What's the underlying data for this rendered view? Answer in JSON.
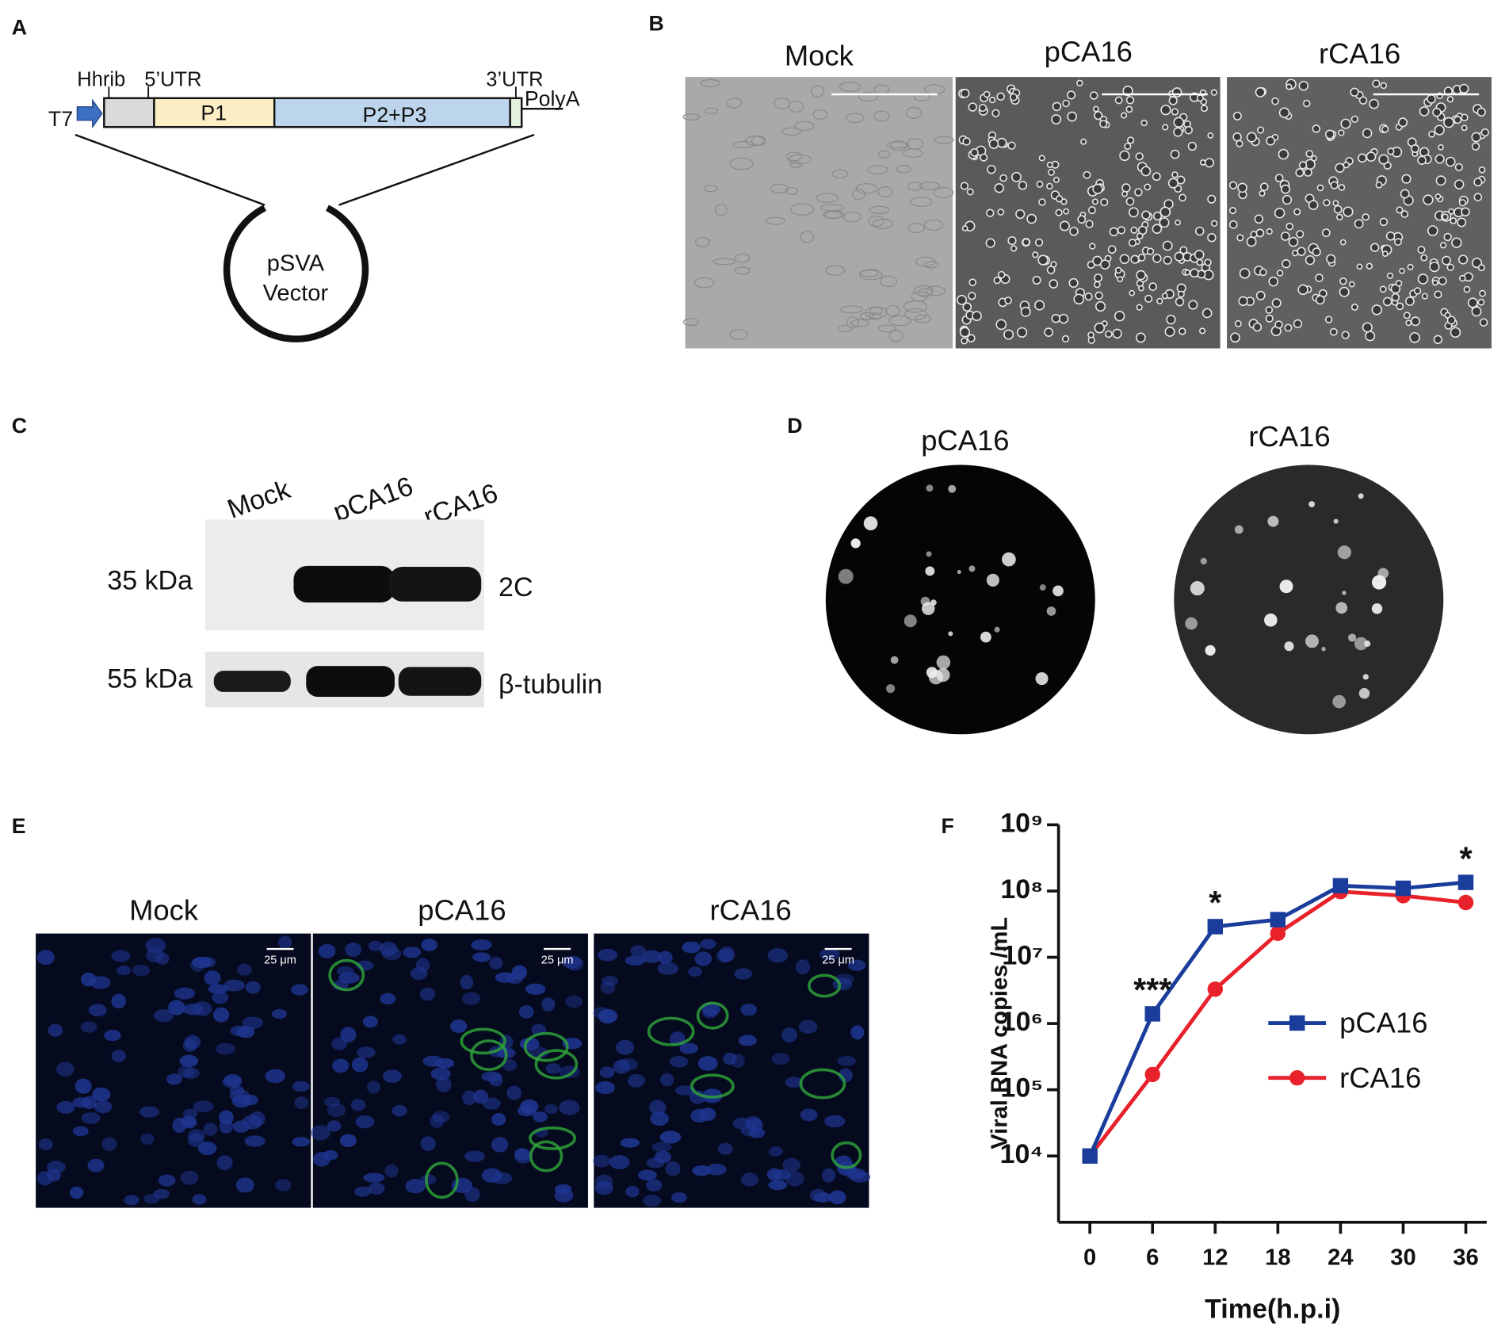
{
  "panel_a": {
    "label": "A",
    "t7": "T7",
    "hhrib": "Hhrib",
    "utr5": "5’UTR",
    "utr3": "3’UTR",
    "p1": "P1",
    "p23": "P2+P3",
    "polya": "PolyA",
    "vector": [
      "pSVA",
      "Vector"
    ]
  },
  "panel_b": {
    "label": "B",
    "columns": [
      "Mock",
      "pCA16",
      "rCA16"
    ]
  },
  "panel_c": {
    "label": "C",
    "lanes": [
      "Mock",
      "pCA16",
      "rCA16"
    ],
    "markers": [
      "35 kDa",
      "55 kDa"
    ],
    "proteins": [
      "2C",
      "β-tubulin"
    ]
  },
  "panel_d": {
    "label": "D",
    "columns": [
      "pCA16",
      "rCA16"
    ]
  },
  "panel_e": {
    "label": "E",
    "columns": [
      "Mock",
      "pCA16",
      "rCA16"
    ],
    "scale_bar": "25 μm"
  },
  "chart_data": {
    "type": "line",
    "label": "F",
    "x_label": "Time(h.p.i)",
    "y_label": "Viral RNA copies /mL",
    "x": [
      0,
      6,
      12,
      18,
      24,
      30,
      36
    ],
    "series": [
      {
        "name": "pCA16",
        "color": "#1a3d9c",
        "marker": "square",
        "values": [
          10000,
          1400000,
          29000000,
          37000000,
          120000000,
          110000000,
          135000000
        ]
      },
      {
        "name": "rCA16",
        "color": "#e8212b",
        "marker": "circle",
        "values": [
          10000,
          170000,
          3300000,
          23000000,
          98000000,
          85000000,
          67000000
        ]
      }
    ],
    "xlim": [
      -3,
      38
    ],
    "xticks": [
      0,
      6,
      12,
      18,
      24,
      30,
      36
    ],
    "ylim": [
      1000,
      1000000000
    ],
    "y_scale": "log",
    "yticks": [
      {
        "value": 10000,
        "label": "10⁴"
      },
      {
        "value": 100000,
        "label": "10⁵"
      },
      {
        "value": 1000000,
        "label": "10⁶"
      },
      {
        "value": 10000000,
        "label": "10⁷"
      },
      {
        "value": 100000000,
        "label": "10⁸"
      },
      {
        "value": 1000000000,
        "label": "10⁹"
      }
    ],
    "annotations": [
      {
        "text": "***",
        "x": 6
      },
      {
        "text": "*",
        "x": 12
      },
      {
        "text": "*",
        "x": 36
      }
    ],
    "legend": "center-right"
  }
}
